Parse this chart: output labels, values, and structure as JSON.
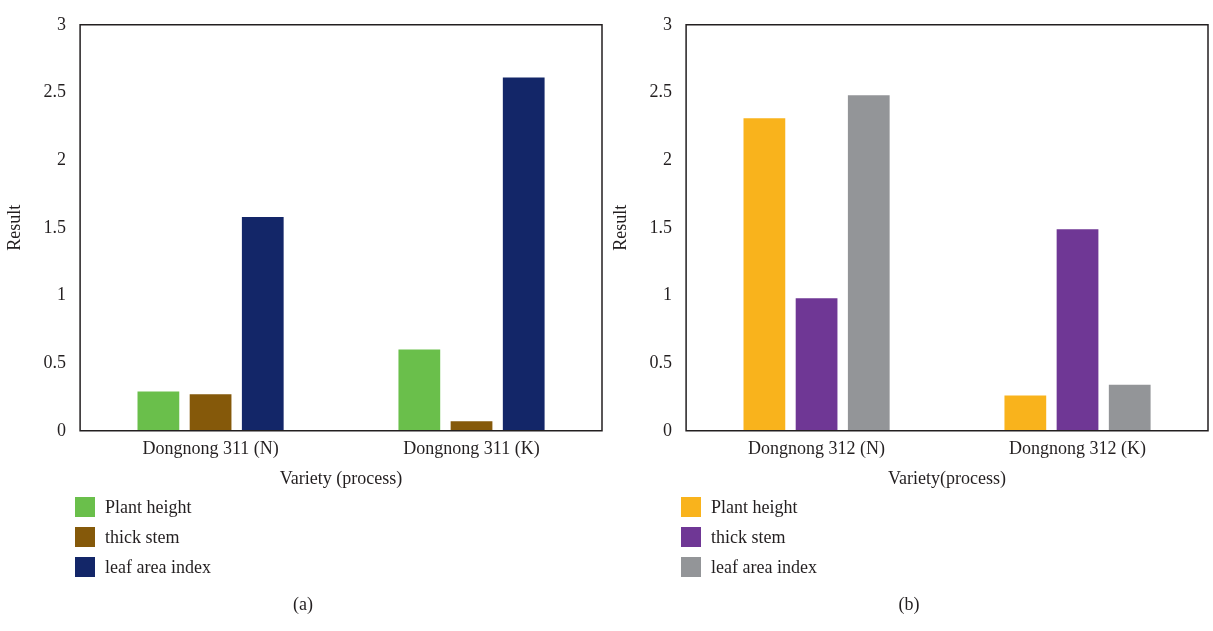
{
  "chart_data": [
    {
      "type": "bar",
      "xlabel": "Variety (process)",
      "ylabel": "Result",
      "categories": [
        "Dongnong 311 (N)",
        "Dongnong 311 (K)"
      ],
      "series": [
        {
          "name": "Plant height",
          "color": "#6abf4b",
          "values": [
            0.29,
            0.6
          ]
        },
        {
          "name": "thick stem",
          "color": "#85590a",
          "values": [
            0.27,
            0.07
          ]
        },
        {
          "name": "leaf area index",
          "color": "#132668",
          "values": [
            1.58,
            2.61
          ]
        }
      ],
      "ylim": [
        0,
        3
      ],
      "yticks": [
        0,
        0.5,
        1,
        1.5,
        2,
        2.5,
        3
      ],
      "grid": false,
      "legend": "bottom left",
      "annotations": [
        "(a)"
      ]
    },
    {
      "type": "bar",
      "xlabel": "Variety(process)",
      "ylabel": "Result",
      "categories": [
        "Dongnong 312 (N)",
        "Dongnong 312 (K)"
      ],
      "series": [
        {
          "name": "Plant height",
          "color": "#f9b31c",
          "values": [
            2.31,
            0.26
          ]
        },
        {
          "name": "thick stem",
          "color": "#6f3795",
          "values": [
            0.98,
            1.49
          ]
        },
        {
          "name": "leaf area index",
          "color": "#939598",
          "values": [
            2.48,
            0.34
          ]
        }
      ],
      "ylim": [
        0,
        3
      ],
      "yticks": [
        0,
        0.5,
        1,
        1.5,
        2,
        2.5,
        3
      ],
      "grid": false,
      "legend": "bottom left",
      "annotations": [
        "(b)"
      ]
    }
  ]
}
